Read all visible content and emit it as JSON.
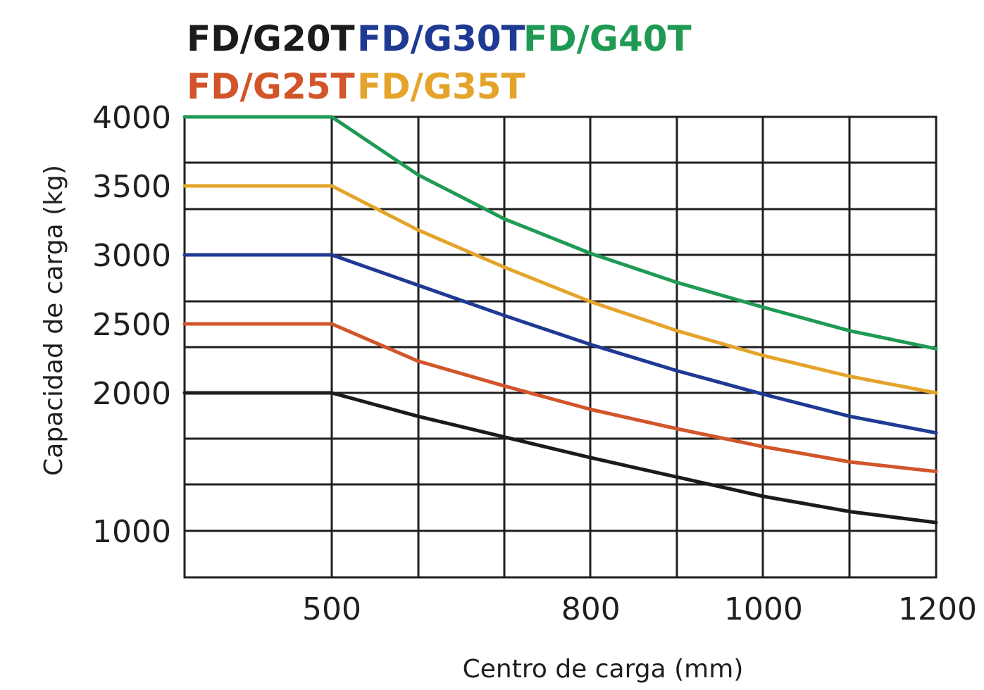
{
  "chart_data": {
    "type": "line",
    "xlabel": "Centro de carga (mm)",
    "ylabel": "Capacidad de carga (kg)",
    "x_tick_labels": [
      500,
      800,
      1000,
      1200
    ],
    "y_tick_labels": [
      1000,
      2000,
      2500,
      3000,
      3500,
      4000
    ],
    "grid": true,
    "legend_position": "top-left",
    "series": [
      {
        "name": "FD/G20T",
        "color": "#1c1a1a",
        "points": [
          [
            330,
            2000
          ],
          [
            500,
            2000
          ],
          [
            600,
            1830
          ],
          [
            700,
            1680
          ],
          [
            800,
            1530
          ],
          [
            900,
            1390
          ],
          [
            1000,
            1250
          ],
          [
            1100,
            1140
          ],
          [
            1200,
            1060
          ]
        ]
      },
      {
        "name": "FD/G25T",
        "color": "#d2552a",
        "points": [
          [
            330,
            2500
          ],
          [
            500,
            2500
          ],
          [
            600,
            2230
          ],
          [
            700,
            2050
          ],
          [
            800,
            1880
          ],
          [
            900,
            1740
          ],
          [
            1000,
            1610
          ],
          [
            1100,
            1500
          ],
          [
            1200,
            1430
          ]
        ]
      },
      {
        "name": "FD/G30T",
        "color": "#1f3a93",
        "points": [
          [
            330,
            3000
          ],
          [
            500,
            3000
          ],
          [
            600,
            2780
          ],
          [
            700,
            2560
          ],
          [
            800,
            2350
          ],
          [
            900,
            2160
          ],
          [
            1000,
            1990
          ],
          [
            1100,
            1830
          ],
          [
            1200,
            1710
          ]
        ]
      },
      {
        "name": "FD/G35T",
        "color": "#e4a42b",
        "points": [
          [
            330,
            3500
          ],
          [
            500,
            3500
          ],
          [
            600,
            3180
          ],
          [
            700,
            2910
          ],
          [
            800,
            2660
          ],
          [
            900,
            2450
          ],
          [
            1000,
            2270
          ],
          [
            1100,
            2120
          ],
          [
            1200,
            2000
          ]
        ]
      },
      {
        "name": "FD/G40T",
        "color": "#1f9a55",
        "points": [
          [
            330,
            4000
          ],
          [
            500,
            4000
          ],
          [
            600,
            3580
          ],
          [
            700,
            3260
          ],
          [
            800,
            3010
          ],
          [
            900,
            2800
          ],
          [
            1000,
            2620
          ],
          [
            1100,
            2450
          ],
          [
            1200,
            2320
          ]
        ]
      }
    ]
  }
}
